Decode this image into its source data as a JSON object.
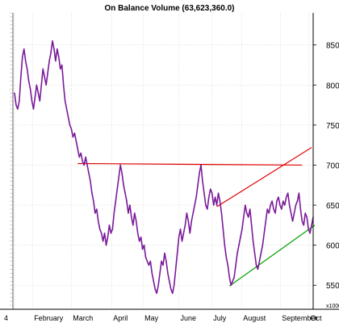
{
  "chart_data": {
    "type": "line",
    "title": "On Balance Volume (63,623,360.0)",
    "ylim": [
      520,
      890
    ],
    "y_ticks": [
      550,
      600,
      650,
      700,
      750,
      800,
      850
    ],
    "y_unit_label": "x1000",
    "x_labels": [
      "4",
      "February",
      "March",
      "April",
      "May",
      "June",
      "July",
      "August",
      "September",
      "Oct"
    ],
    "left_ticks_every": 5,
    "left_ticks_start": 525,
    "series": [
      {
        "color": "#7a1a9a",
        "x": [
          0,
          1,
          2,
          3,
          4,
          5,
          6,
          7,
          8,
          9,
          10,
          11,
          12,
          13,
          14,
          15,
          16,
          17,
          18,
          19,
          20,
          21,
          22,
          23,
          24,
          25,
          26,
          27,
          28,
          29,
          30,
          31,
          32,
          33,
          34,
          35,
          36,
          37,
          38,
          39,
          40,
          41,
          42,
          43,
          44,
          45,
          46,
          47,
          48,
          49,
          50,
          51,
          52,
          53,
          54,
          55,
          56,
          57,
          58,
          59,
          60,
          61,
          62,
          63,
          64,
          65,
          66,
          67,
          68,
          69,
          70,
          71,
          72,
          73,
          74,
          75,
          76,
          77,
          78,
          79,
          80,
          81,
          82,
          83,
          84,
          85,
          86,
          87,
          88,
          89,
          90,
          91,
          92,
          93,
          94,
          95,
          96,
          97,
          98,
          99,
          100,
          101,
          102,
          103,
          104,
          105,
          106,
          107,
          108,
          109,
          110,
          111,
          112,
          113,
          114,
          115,
          116,
          117,
          118,
          119,
          120,
          121,
          122,
          123,
          124,
          125,
          126,
          127,
          128,
          129,
          130,
          131,
          132,
          133,
          134,
          135,
          136,
          137,
          138,
          139,
          140,
          141,
          142,
          143,
          144,
          145,
          146,
          147,
          148,
          149,
          150,
          151,
          152,
          153,
          154,
          155,
          156,
          157,
          158,
          159,
          160,
          161,
          162,
          163,
          164,
          165,
          166,
          167,
          168,
          169,
          170,
          171,
          172,
          173,
          174,
          175,
          176,
          177,
          178,
          179,
          180,
          181,
          182,
          183,
          184,
          185,
          186,
          187,
          188,
          189
        ],
        "values": [
          790,
          775,
          770,
          780,
          810,
          835,
          845,
          830,
          820,
          805,
          795,
          780,
          770,
          785,
          800,
          790,
          780,
          800,
          820,
          810,
          800,
          815,
          830,
          840,
          855,
          845,
          830,
          845,
          835,
          820,
          825,
          800,
          780,
          770,
          760,
          750,
          745,
          735,
          740,
          730,
          720,
          710,
          715,
          705,
          700,
          710,
          700,
          690,
          680,
          665,
          655,
          640,
          645,
          630,
          620,
          615,
          605,
          615,
          600,
          610,
          625,
          615,
          620,
          640,
          655,
          670,
          685,
          700,
          690,
          675,
          665,
          655,
          640,
          650,
          635,
          625,
          640,
          630,
          615,
          605,
          610,
          595,
          600,
          585,
          580,
          575,
          580,
          565,
          555,
          545,
          540,
          550,
          565,
          580,
          575,
          590,
          580,
          565,
          555,
          545,
          540,
          550,
          570,
          590,
          610,
          620,
          605,
          615,
          625,
          640,
          630,
          615,
          630,
          640,
          650,
          660,
          675,
          690,
          700,
          680,
          665,
          650,
          645,
          660,
          670,
          665,
          650,
          660,
          650,
          665,
          655,
          640,
          620,
          600,
          585,
          575,
          560,
          550,
          555,
          560,
          575,
          590,
          600,
          610,
          620,
          635,
          650,
          640,
          635,
          645,
          625,
          605,
          590,
          575,
          570,
          580,
          590,
          600,
          615,
          630,
          645,
          640,
          650,
          655,
          645,
          640,
          655,
          660,
          650,
          645,
          655,
          650,
          660,
          665,
          650,
          640,
          630,
          640,
          650,
          655,
          665,
          645,
          630,
          625,
          640,
          635,
          620,
          615,
          625,
          635
        ]
      }
    ],
    "trendlines": [
      {
        "color": "#e00000",
        "points": [
          [
            40,
            702
          ],
          [
            182,
            700
          ]
        ]
      },
      {
        "color": "#e00000",
        "points": [
          [
            128,
            648
          ],
          [
            188,
            722
          ]
        ]
      },
      {
        "color": "#00a000",
        "points": [
          [
            136,
            549
          ],
          [
            190,
            625
          ]
        ]
      }
    ]
  }
}
